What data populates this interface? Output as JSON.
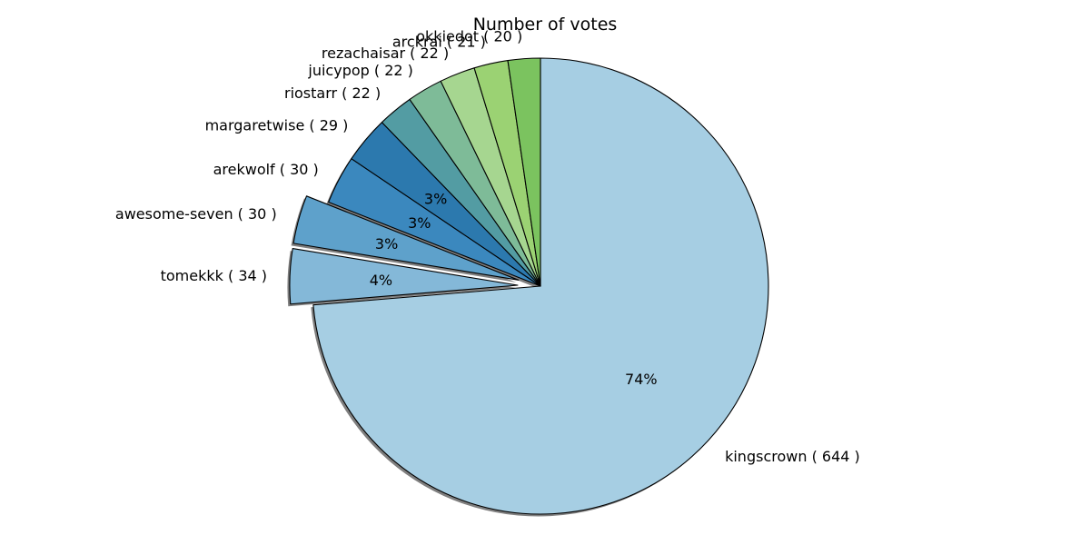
{
  "chart_data": {
    "type": "pie",
    "title": "Number of votes",
    "slices": [
      {
        "label": "kingscrown",
        "value": 644,
        "label_text": "kingscrown ( 644 )",
        "pct_text": "74%",
        "color": "#a6cee3",
        "explode": 0.0
      },
      {
        "label": "tomekkk",
        "value": 34,
        "label_text": "tomekkk ( 34 )",
        "pct_text": "4%",
        "color": "#84b8d8",
        "explode": 0.1
      },
      {
        "label": "awesome-seven",
        "value": 30,
        "label_text": "awesome-seven ( 30 )",
        "pct_text": "3%",
        "color": "#5ea1cb",
        "explode": 0.1
      },
      {
        "label": "arekwolf",
        "value": 30,
        "label_text": "arekwolf ( 30 )",
        "pct_text": "3%",
        "color": "#3b88be",
        "explode": 0.0
      },
      {
        "label": "margaretwise",
        "value": 29,
        "label_text": "margaretwise ( 29 )",
        "pct_text": "3%",
        "color": "#2c79ae",
        "explode": 0.0
      },
      {
        "label": "riostarr",
        "value": 22,
        "label_text": "riostarr ( 22 )",
        "pct_text": "",
        "color": "#539ca3",
        "explode": 0.0
      },
      {
        "label": "juicypop",
        "value": 22,
        "label_text": "juicypop ( 22 )",
        "pct_text": "",
        "color": "#7ebb98",
        "explode": 0.0
      },
      {
        "label": "rezachaisar",
        "value": 22,
        "label_text": "rezachaisar ( 22 )",
        "pct_text": "",
        "color": "#a6d690",
        "explode": 0.0
      },
      {
        "label": "arckrai",
        "value": 21,
        "label_text": "arckrai ( 21 )",
        "pct_text": "",
        "color": "#9bd273",
        "explode": 0.0
      },
      {
        "label": "okkiedot",
        "value": 20,
        "label_text": "okkiedot ( 20 )",
        "pct_text": "",
        "color": "#7bc35f",
        "explode": 0.0
      }
    ],
    "start_angle_deg": 90,
    "direction": "clockwise",
    "shadow": true,
    "legend": "none"
  }
}
